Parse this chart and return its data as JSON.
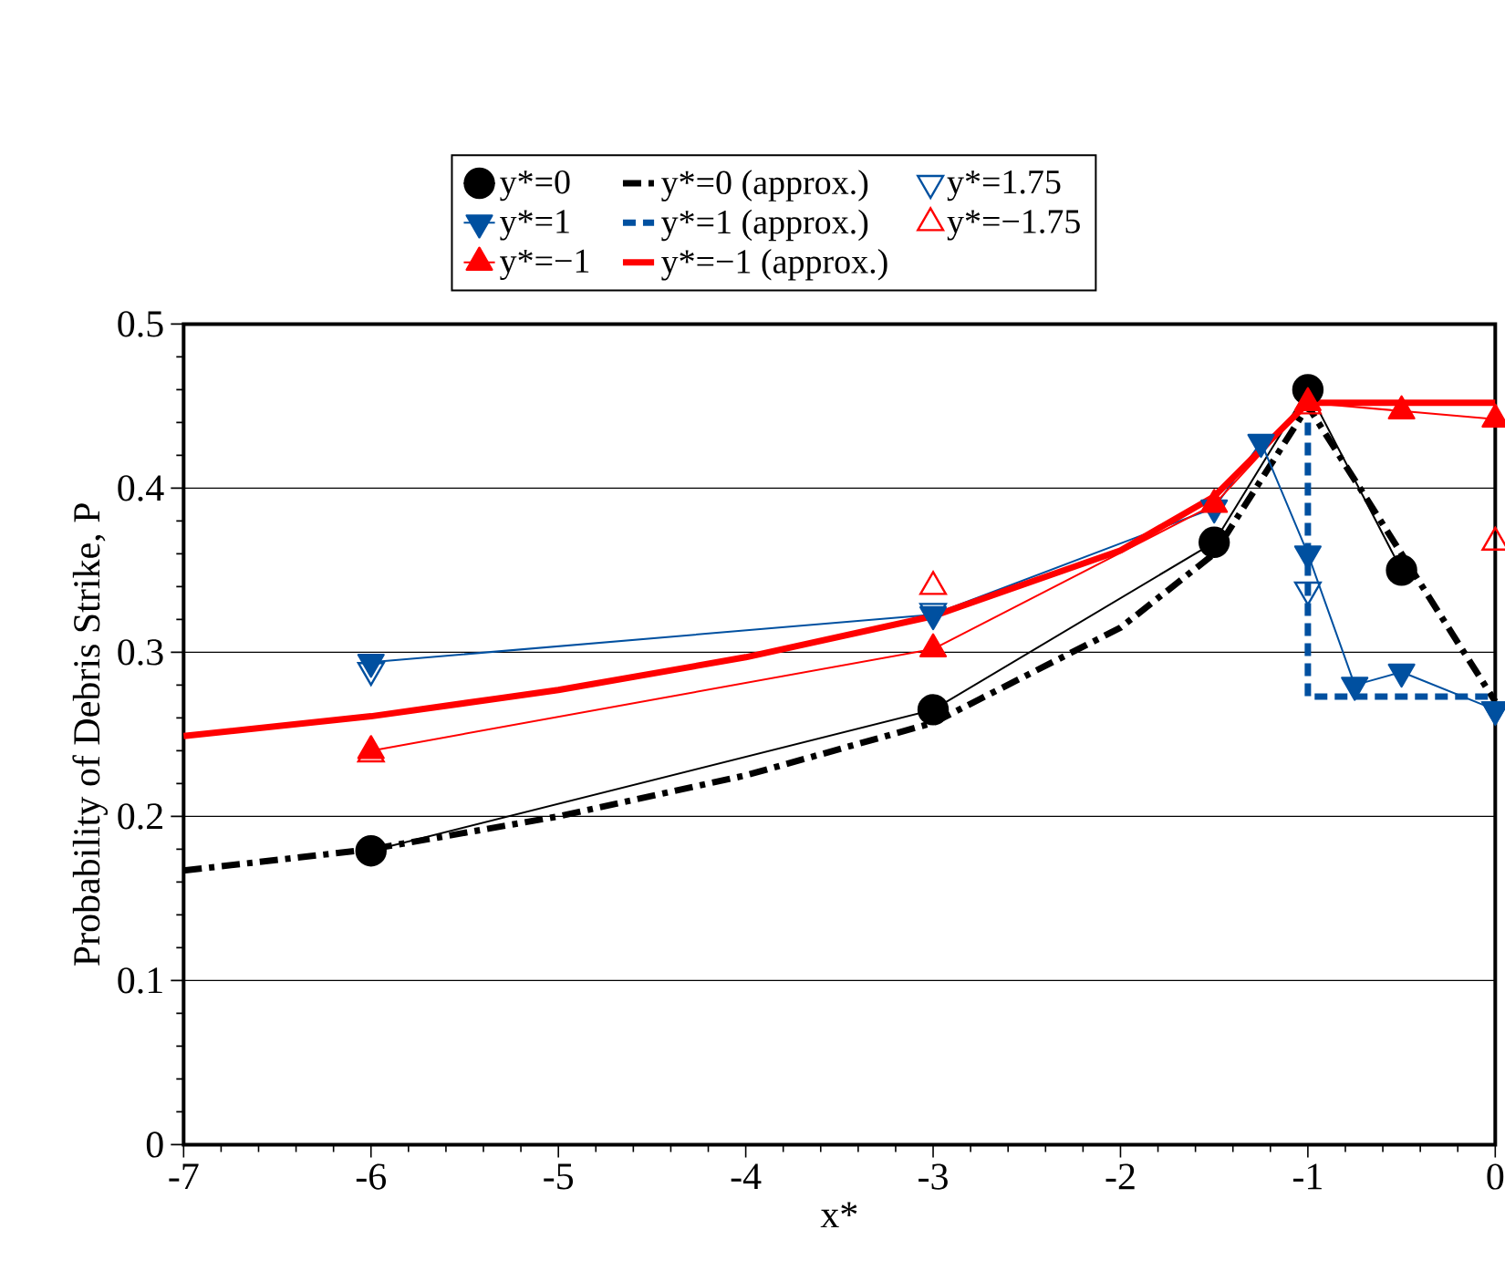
{
  "chart_data": {
    "type": "line",
    "xlabel": "x*",
    "ylabel": "Probability of Debris Strike, P",
    "xlim": [
      -7,
      0
    ],
    "xticks": [
      -7,
      -6,
      -5,
      -4,
      -3,
      -2,
      -1,
      0
    ],
    "ylim": [
      0,
      0.5
    ],
    "yticks": [
      0,
      0.1,
      0.2,
      0.3,
      0.4,
      0.5
    ],
    "grid": "y",
    "legend": "top",
    "series": [
      {
        "name": "y*=0",
        "color": "#000000",
        "marker": "circle",
        "line_style": "solid",
        "x": [
          -6,
          -3,
          -1.5,
          -1,
          -0.5
        ],
        "values": [
          0.179,
          0.265,
          0.367,
          0.46,
          0.35
        ]
      },
      {
        "name": "y*=0 (approx.)",
        "color": "#000000",
        "marker": "none",
        "line_style": "dashdot",
        "x": [
          -7,
          -6,
          -5,
          -4,
          -3,
          -2,
          -1.5,
          -1,
          -0.5,
          0
        ],
        "values": [
          0.167,
          0.18,
          0.2,
          0.225,
          0.257,
          0.315,
          0.36,
          0.45,
          0.36,
          0.27
        ]
      },
      {
        "name": "y*=1.75",
        "type": "scatter",
        "color": "#0050a0",
        "marker": "triangle-down-open",
        "x": [
          -6,
          -3,
          -1,
          0
        ],
        "values": [
          0.289,
          0.325,
          0.338,
          0.265
        ]
      },
      {
        "name": "y*=1",
        "color": "#0050a0",
        "marker": "triangle-down",
        "line_style": "solid",
        "x": [
          -6,
          -3,
          -1.5,
          -1.25,
          -1,
          -0.75,
          -0.5,
          0
        ],
        "values": [
          0.294,
          0.323,
          0.388,
          0.428,
          0.36,
          0.28,
          0.288,
          0.265
        ]
      },
      {
        "name": "y*=1 (approx.)",
        "color": "#0050a0",
        "marker": "none",
        "line_style": "dashed",
        "x": [
          -1,
          -1,
          0
        ],
        "values": [
          0.44,
          0.273,
          0.273
        ]
      },
      {
        "name": "y*=−1.75",
        "type": "scatter",
        "color": "#ff0000",
        "marker": "triangle-open",
        "x": [
          -6,
          -3,
          -1,
          0
        ],
        "values": [
          0.238,
          0.34,
          0.45,
          0.367
        ]
      },
      {
        "name": "y*=−1",
        "color": "#ff0000",
        "marker": "triangle",
        "line_style": "solid",
        "x": [
          -6,
          -3,
          -1.5,
          -1,
          -0.5,
          0
        ],
        "values": [
          0.24,
          0.302,
          0.39,
          0.452,
          0.447,
          0.442
        ]
      },
      {
        "name": "y*=−1 (approx.)",
        "color": "#ff0000",
        "marker": "none",
        "line_style": "solid",
        "x": [
          -7,
          -6,
          -5,
          -4,
          -3,
          -2,
          -1.5,
          -1,
          0
        ],
        "values": [
          0.249,
          0.261,
          0.277,
          0.297,
          0.322,
          0.362,
          0.395,
          0.452,
          0.452
        ]
      }
    ]
  }
}
